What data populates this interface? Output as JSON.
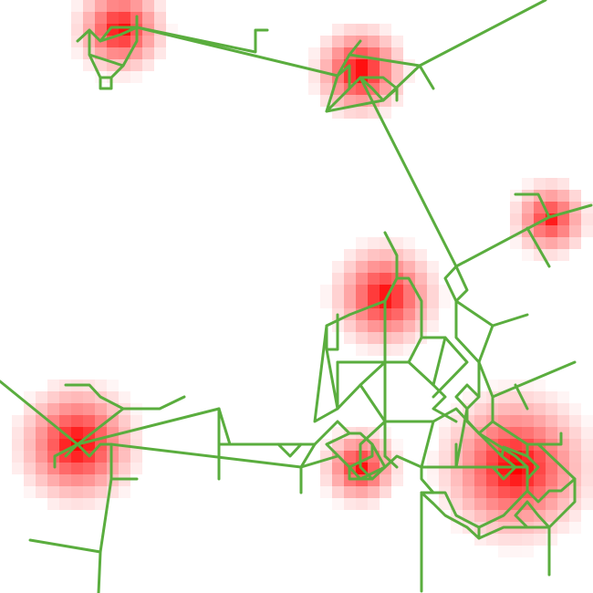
{
  "colors": {
    "background": "#ffffff",
    "network": "#5aad3e",
    "heat_core": "#ff1a1a"
  },
  "icon": "heatmap-network-overlay",
  "hotspots": [
    {
      "id": "h1",
      "intensity": 0.95
    },
    {
      "id": "h2",
      "intensity": 1.0
    },
    {
      "id": "h3",
      "intensity": 0.85
    },
    {
      "id": "h4",
      "intensity": 0.95
    },
    {
      "id": "h5",
      "intensity": 1.0
    },
    {
      "id": "h6",
      "intensity": 0.9
    },
    {
      "id": "h7",
      "intensity": 1.0
    }
  ]
}
